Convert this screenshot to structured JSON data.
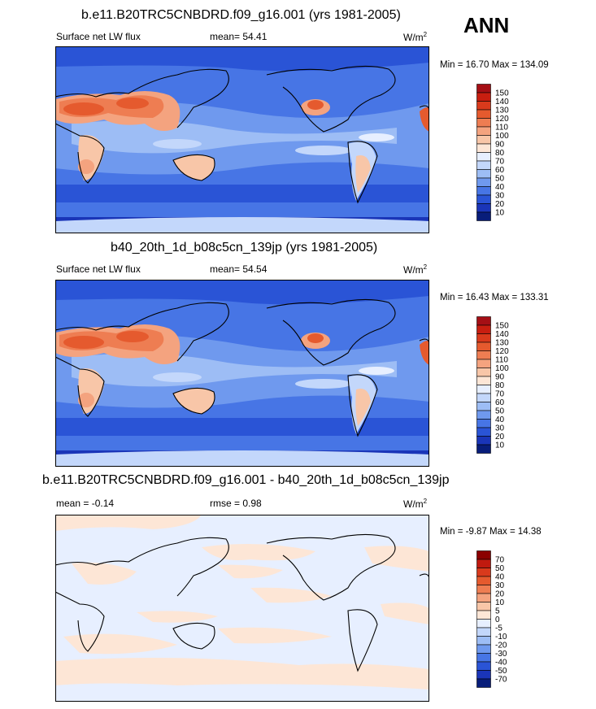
{
  "season": "ANN",
  "panels": [
    {
      "title": "b.e11.B20TRC5CNBDRD.f09_g16.001 (yrs 1981-2005)",
      "left_label": "Surface net LW flux",
      "center_label": "mean=  54.41",
      "units": "W/m",
      "units_sup": "2",
      "minmax": "Min = 16.70 Max = 134.09",
      "levels": [
        "150",
        "140",
        "130",
        "120",
        "110",
        "100",
        "90",
        "80",
        "70",
        "60",
        "50",
        "40",
        "30",
        "20",
        "10"
      ],
      "colors": [
        "#a50f15",
        "#c81e10",
        "#d93a1c",
        "#e55a2e",
        "#ee7d52",
        "#f4a37f",
        "#f8c6a8",
        "#fde6d6",
        "#e7efff",
        "#c3d7fb",
        "#9dbdf5",
        "#6f99ee",
        "#4775e5",
        "#2a54d6",
        "#1a35b8",
        "#081d7a"
      ]
    },
    {
      "title": "b40_20th_1d_b08c5cn_139jp (yrs 1981-2005)",
      "left_label": "Surface net LW flux",
      "center_label": "mean=  54.54",
      "units": "W/m",
      "units_sup": "2",
      "minmax": "Min = 16.43 Max = 133.31",
      "levels": [
        "150",
        "140",
        "130",
        "120",
        "110",
        "100",
        "90",
        "80",
        "70",
        "60",
        "50",
        "40",
        "30",
        "20",
        "10"
      ],
      "colors": [
        "#a50f15",
        "#c81e10",
        "#d93a1c",
        "#e55a2e",
        "#ee7d52",
        "#f4a37f",
        "#f8c6a8",
        "#fde6d6",
        "#e7efff",
        "#c3d7fb",
        "#9dbdf5",
        "#6f99ee",
        "#4775e5",
        "#2a54d6",
        "#1a35b8",
        "#081d7a"
      ]
    },
    {
      "title": "b.e11.B20TRC5CNBDRD.f09_g16.001 - b40_20th_1d_b08c5cn_139jp",
      "left_label": "mean =  -0.14",
      "center_label": "rmse =   0.98",
      "units": "W/m",
      "units_sup": "2",
      "minmax": "Min =  -9.87 Max = 14.38",
      "levels": [
        "70",
        "50",
        "40",
        "30",
        "20",
        "10",
        "5",
        "0",
        "-5",
        "-10",
        "-20",
        "-30",
        "-40",
        "-50",
        "-70"
      ],
      "colors": [
        "#8b0000",
        "#c01a0f",
        "#d93a1c",
        "#e55a2e",
        "#ee7d52",
        "#f4a37f",
        "#f8c6a8",
        "#fde6d6",
        "#e7efff",
        "#c3d7fb",
        "#9dbdf5",
        "#6f99ee",
        "#4775e5",
        "#2a54d6",
        "#1a35b8",
        "#081d7a"
      ]
    }
  ]
}
